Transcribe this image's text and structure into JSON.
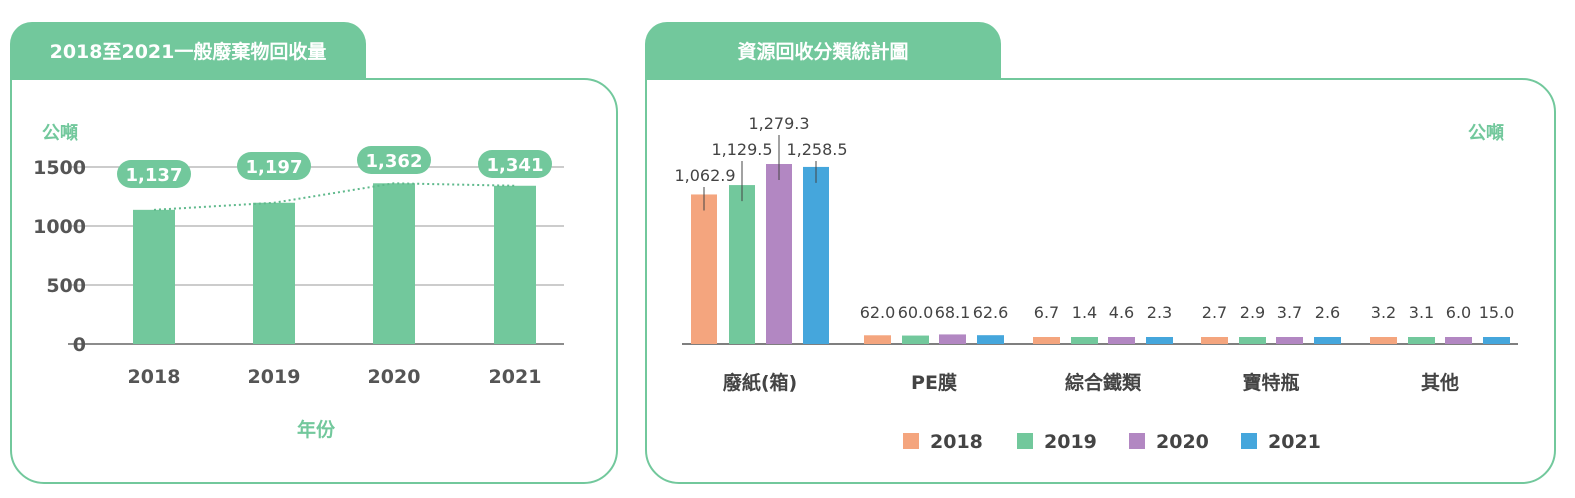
{
  "colors": {
    "accent": "#72c89c",
    "bar_2018": "#f4a57e",
    "bar_2019": "#72c89c",
    "bar_2020": "#b287c2",
    "bar_2021": "#45a6dc",
    "axis_text": "#555555",
    "value_text": "#444444"
  },
  "left_panel": {
    "title": "2018至2021一般廢棄物回收量"
  },
  "right_panel": {
    "title": "資源回收分類統計圖"
  },
  "chart_data": [
    {
      "type": "bar",
      "title": "2018至2021一般廢棄物回收量",
      "ylabel": "公噸",
      "xlabel": "年份",
      "categories": [
        "2018",
        "2019",
        "2020",
        "2021"
      ],
      "values": [
        1137,
        1197,
        1362,
        1341
      ],
      "value_labels": [
        "1,137",
        "1,197",
        "1,362",
        "1,341"
      ],
      "yticks": [
        0,
        500,
        1000,
        1500
      ],
      "ytick_labels": [
        "0",
        "500",
        "1000",
        "1500"
      ],
      "ylim": [
        0,
        1500
      ],
      "grid": true,
      "trend_line": "dotted"
    },
    {
      "type": "bar",
      "title": "資源回收分類統計圖",
      "ylabel": "公噸",
      "categories": [
        "廢紙(箱)",
        "PE膜",
        "綜合鐵類",
        "寶特瓶",
        "其他"
      ],
      "series": [
        {
          "name": "2018",
          "values": [
            1062.9,
            62.0,
            6.7,
            2.7,
            3.2
          ],
          "labels": [
            "1,062.9",
            "62.0",
            "6.7",
            "2.7",
            "3.2"
          ]
        },
        {
          "name": "2019",
          "values": [
            1129.5,
            60.0,
            1.4,
            2.9,
            3.1
          ],
          "labels": [
            "1,129.5",
            "60.0",
            "1.4",
            "2.9",
            "3.1"
          ]
        },
        {
          "name": "2020",
          "values": [
            1279.3,
            68.1,
            4.6,
            3.7,
            6.0
          ],
          "labels": [
            "1,279.3",
            "68.1",
            "4.6",
            "3.7",
            "6.0"
          ]
        },
        {
          "name": "2021",
          "values": [
            1258.5,
            62.6,
            2.3,
            2.6,
            15.0
          ],
          "labels": [
            "1,258.5",
            "62.6",
            "2.3",
            "2.6",
            "15.0"
          ]
        }
      ],
      "legend": "bottom-center"
    }
  ]
}
